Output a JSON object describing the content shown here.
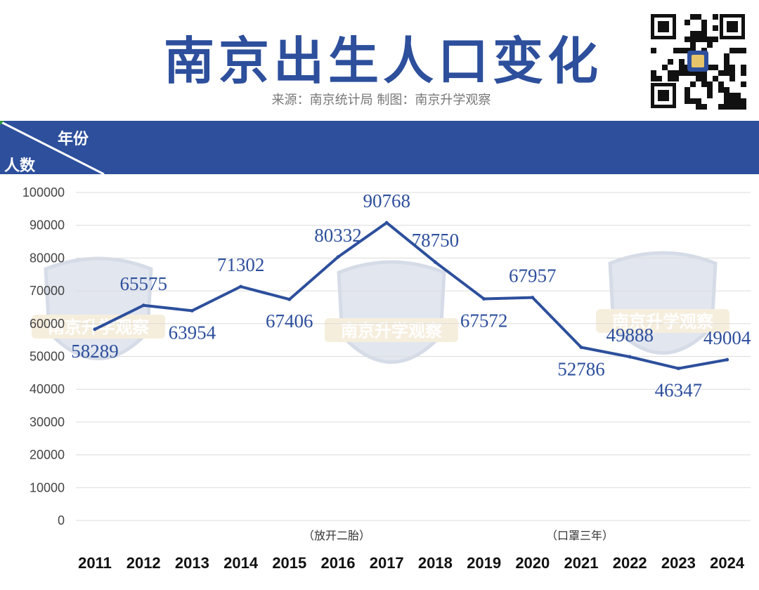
{
  "header": {
    "title": "南京出生人口变化",
    "subtitle": "来源：南京统计局   制图：南京升学观察"
  },
  "banner": {
    "x_axis_label": "年份",
    "y_axis_label": "人数",
    "color": "#2d4f9c"
  },
  "watermark_text": "南京升学观察",
  "chart_data": {
    "type": "line",
    "categories": [
      "2011",
      "2012",
      "2013",
      "2014",
      "2015",
      "2016",
      "2017",
      "2018",
      "2019",
      "2020",
      "2021",
      "2022",
      "2023",
      "2024"
    ],
    "series": [
      {
        "values": [
          58289,
          65575,
          63954,
          71302,
          67406,
          80332,
          90768,
          78750,
          67572,
          67957,
          52786,
          49888,
          46347,
          49004
        ]
      }
    ],
    "ylim": [
      0,
      100000
    ],
    "yticks": [
      "0",
      "10000",
      "20000",
      "30000",
      "40000",
      "50000",
      "60000",
      "70000",
      "80000",
      "90000",
      "100000"
    ],
    "xlabel": "年份",
    "ylabel": "人数",
    "annotations": [
      {
        "text": "（放开二胎）",
        "near": "2016"
      },
      {
        "text": "（口罩三年）",
        "near": "2021"
      }
    ],
    "line_color": "#2d4f9c",
    "grid": true
  }
}
